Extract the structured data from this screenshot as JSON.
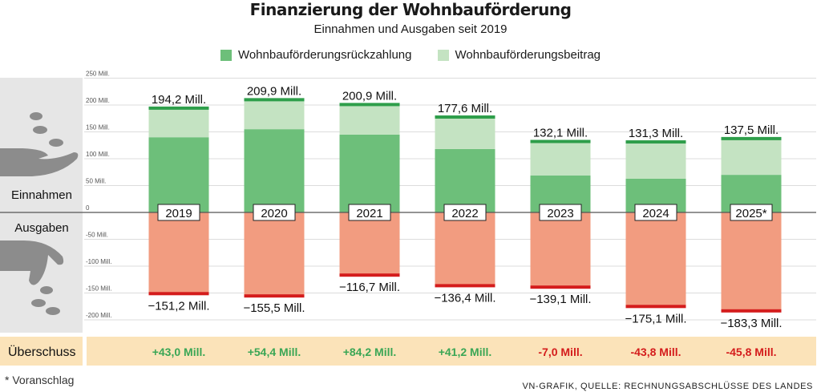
{
  "header": {
    "title": "Finanzierung der Wohnbauförderung",
    "subtitle": "Einnahmen und Ausgaben seit 2019"
  },
  "legend": [
    {
      "label": "Wohnbauförderungsrückzahlung",
      "color": "#6dbf7a"
    },
    {
      "label": "Wohnbauförderungsbeitrag",
      "color": "#c4e3c2"
    }
  ],
  "side_labels": {
    "income": "Einnahmen",
    "expense": "Ausgaben",
    "surplus": "Überschuss"
  },
  "colors": {
    "repayment": "#6dbf7a",
    "contribution": "#c4e3c2",
    "expense": "#f29c80",
    "income_cap": "#2e9e4a",
    "expense_cap": "#d41c1c",
    "surplus_positive": "#3aa655",
    "surplus_negative": "#d41c1c",
    "surplus_band": "#fbe3b9",
    "side_panel": "#e6e6e6"
  },
  "chart_data": {
    "type": "bar",
    "title": "Finanzierung der Wohnbauförderung",
    "subtitle": "Einnahmen und Ausgaben seit 2019",
    "categories": [
      "2019",
      "2020",
      "2021",
      "2022",
      "2023",
      "2024",
      "2025*"
    ],
    "yticks": [
      {
        "value": 250,
        "label": "250 Mill."
      },
      {
        "value": 200,
        "label": "200 Mill."
      },
      {
        "value": 150,
        "label": "150 Mill."
      },
      {
        "value": 100,
        "label": "100 Mill."
      },
      {
        "value": 50,
        "label": "50 Mill."
      },
      {
        "value": 0,
        "label": "0"
      },
      {
        "value": -50,
        "label": "-50 Mill."
      },
      {
        "value": -100,
        "label": "-100 Mill."
      },
      {
        "value": -150,
        "label": "-150 Mill."
      },
      {
        "value": -200,
        "label": "-200 Mill."
      }
    ],
    "ylim": [
      -220,
      260
    ],
    "series": [
      {
        "name": "Wohnbauförderungsrückzahlung",
        "values": [
          140,
          155,
          145,
          118,
          69,
          63,
          70
        ]
      },
      {
        "name": "Wohnbauförderungsbeitrag",
        "values": [
          54.2,
          54.9,
          55.9,
          59.6,
          63.1,
          68.3,
          67.5
        ]
      }
    ],
    "income_totals": [
      194.2,
      209.9,
      200.9,
      177.6,
      132.1,
      131.3,
      137.5
    ],
    "income_labels": [
      "194,2 Mill.",
      "209,9 Mill.",
      "200,9 Mill.",
      "177,6 Mill.",
      "132,1 Mill.",
      "131,3 Mill.",
      "137,5 Mill."
    ],
    "expenses": [
      -151.2,
      -155.5,
      -116.7,
      -136.4,
      -139.1,
      -175.1,
      -183.3
    ],
    "expense_labels": [
      "−151,2 Mill.",
      "−155,5 Mill.",
      "−116,7 Mill.",
      "−136,4 Mill.",
      "−139,1 Mill.",
      "−175,1 Mill.",
      "−183,3 Mill."
    ],
    "surplus": [
      43.0,
      54.4,
      84.2,
      41.2,
      -7.0,
      -43.8,
      -45.8
    ],
    "surplus_labels": [
      "+43,0 Mill.",
      "+54,4 Mill.",
      "+84,2 Mill.",
      "+41,2 Mill.",
      "-7,0 Mill.",
      "-43,8 Mill.",
      "-45,8 Mill."
    ]
  },
  "footnote": "* Voranschlag",
  "source": "VN-GRAFIK, QUELLE: RECHNUNGSABSCHLÜSSE DES LANDES"
}
